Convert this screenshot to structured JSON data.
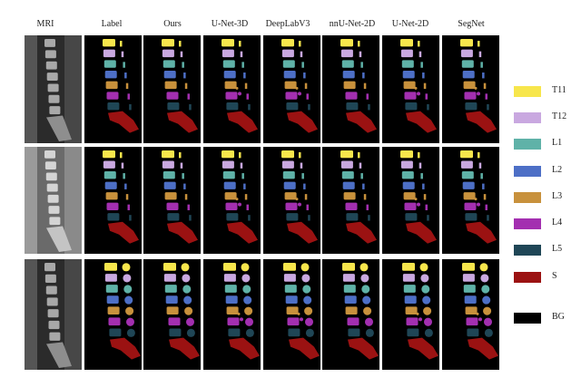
{
  "columns": [
    "MRI",
    "Label",
    "Ours",
    "U-Net-3D",
    "DeepLabV3",
    "nnU-Net-2D",
    "U-Net-2D",
    "SegNet"
  ],
  "legend": [
    {
      "label": "T11",
      "color": "#f7e64c"
    },
    {
      "label": "T12",
      "color": "#c9a8e0"
    },
    {
      "label": "L1",
      "color": "#5fb2a8"
    },
    {
      "label": "L2",
      "color": "#4d6fc6"
    },
    {
      "label": "L3",
      "color": "#c8913c"
    },
    {
      "label": "L4",
      "color": "#a32fb0"
    },
    {
      "label": "L5",
      "color": "#1f4656"
    },
    {
      "label": "S",
      "color": "#9b1212"
    },
    {
      "label": "BG",
      "color": "#000000"
    }
  ],
  "rows": 3
}
